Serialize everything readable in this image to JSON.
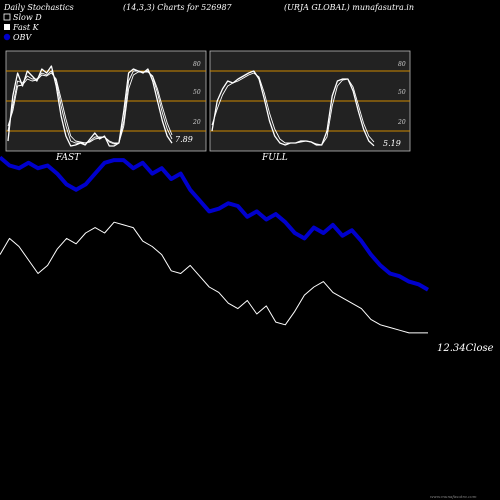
{
  "header": {
    "left": "Daily Stochastics",
    "params": "(14,3,3) Charts for 526987",
    "right": "(URJA GLOBAL) munafasutra.in"
  },
  "legend": [
    {
      "label": "Slow  D",
      "color": "#ffffff"
    },
    {
      "label": "Fast K",
      "color": "#ffffff"
    },
    {
      "label": "OBV",
      "color": "#0000cc"
    }
  ],
  "colors": {
    "background": "#000000",
    "panel": "#222222",
    "level_line": "#cc8800",
    "obv": "#0000cc",
    "price": "#ffffff"
  },
  "footer": "www.munafasutra.com",
  "chart_data": [
    {
      "type": "line",
      "panel": "FAST",
      "levels": [
        80,
        50,
        20
      ],
      "ylim": [
        0,
        100
      ],
      "last_value": "7.89",
      "series": [
        {
          "values": [
            10,
            55,
            78,
            65,
            80,
            75,
            70,
            82,
            78,
            85,
            65,
            35,
            15,
            5,
            6,
            8,
            6,
            12,
            18,
            12,
            15,
            5,
            5,
            8,
            40,
            78,
            82,
            80,
            78,
            82,
            70,
            50,
            30,
            15,
            7.89
          ]
        },
        {
          "values": [
            20,
            45,
            70,
            68,
            75,
            72,
            72,
            78,
            76,
            80,
            70,
            45,
            25,
            10,
            8,
            8,
            8,
            10,
            14,
            14,
            14,
            9,
            7,
            8,
            30,
            70,
            80,
            80,
            79,
            80,
            74,
            58,
            38,
            22,
            12
          ]
        },
        {
          "values": [
            25,
            40,
            65,
            66,
            72,
            70,
            71,
            76,
            75,
            78,
            72,
            52,
            32,
            15,
            10,
            9,
            8,
            9,
            12,
            13,
            14,
            10,
            8,
            8,
            25,
            62,
            76,
            79,
            79,
            79,
            75,
            62,
            44,
            28,
            16
          ]
        }
      ]
    },
    {
      "type": "line",
      "panel": "FULL",
      "levels": [
        80,
        50,
        20
      ],
      "ylim": [
        0,
        100
      ],
      "last_value": "5.19",
      "series": [
        {
          "values": [
            20,
            50,
            62,
            70,
            68,
            72,
            75,
            78,
            80,
            72,
            52,
            30,
            15,
            8,
            6,
            8,
            8,
            10,
            10,
            9,
            6,
            6,
            20,
            55,
            70,
            72,
            72,
            60,
            40,
            22,
            10,
            5.19
          ]
        },
        {
          "values": [
            26,
            42,
            56,
            65,
            68,
            70,
            73,
            76,
            78,
            74,
            58,
            38,
            22,
            12,
            8,
            8,
            8,
            9,
            10,
            9,
            7,
            6,
            14,
            45,
            65,
            71,
            72,
            64,
            46,
            28,
            15,
            9
          ]
        }
      ]
    },
    {
      "type": "line",
      "panel": "OBV",
      "close_label": "12.34Close",
      "series": [
        {
          "name": "OBV",
          "values": [
            88,
            85,
            84,
            86,
            84,
            85,
            82,
            78,
            76,
            78,
            82,
            86,
            87,
            87,
            84,
            86,
            82,
            84,
            80,
            82,
            76,
            72,
            68,
            69,
            71,
            70,
            66,
            68,
            65,
            67,
            64,
            60,
            58,
            62,
            60,
            63,
            59,
            61,
            57,
            52,
            48,
            45,
            44,
            42,
            41,
            39
          ]
        },
        {
          "name": "Price",
          "values": [
            52,
            58,
            55,
            50,
            45,
            48,
            54,
            58,
            56,
            60,
            62,
            60,
            64,
            63,
            62,
            57,
            55,
            52,
            46,
            45,
            48,
            44,
            40,
            38,
            34,
            32,
            35,
            30,
            33,
            27,
            26,
            31,
            37,
            40,
            42,
            38,
            36,
            34,
            32,
            28,
            26,
            25,
            24,
            23,
            23,
            23
          ]
        }
      ]
    }
  ]
}
